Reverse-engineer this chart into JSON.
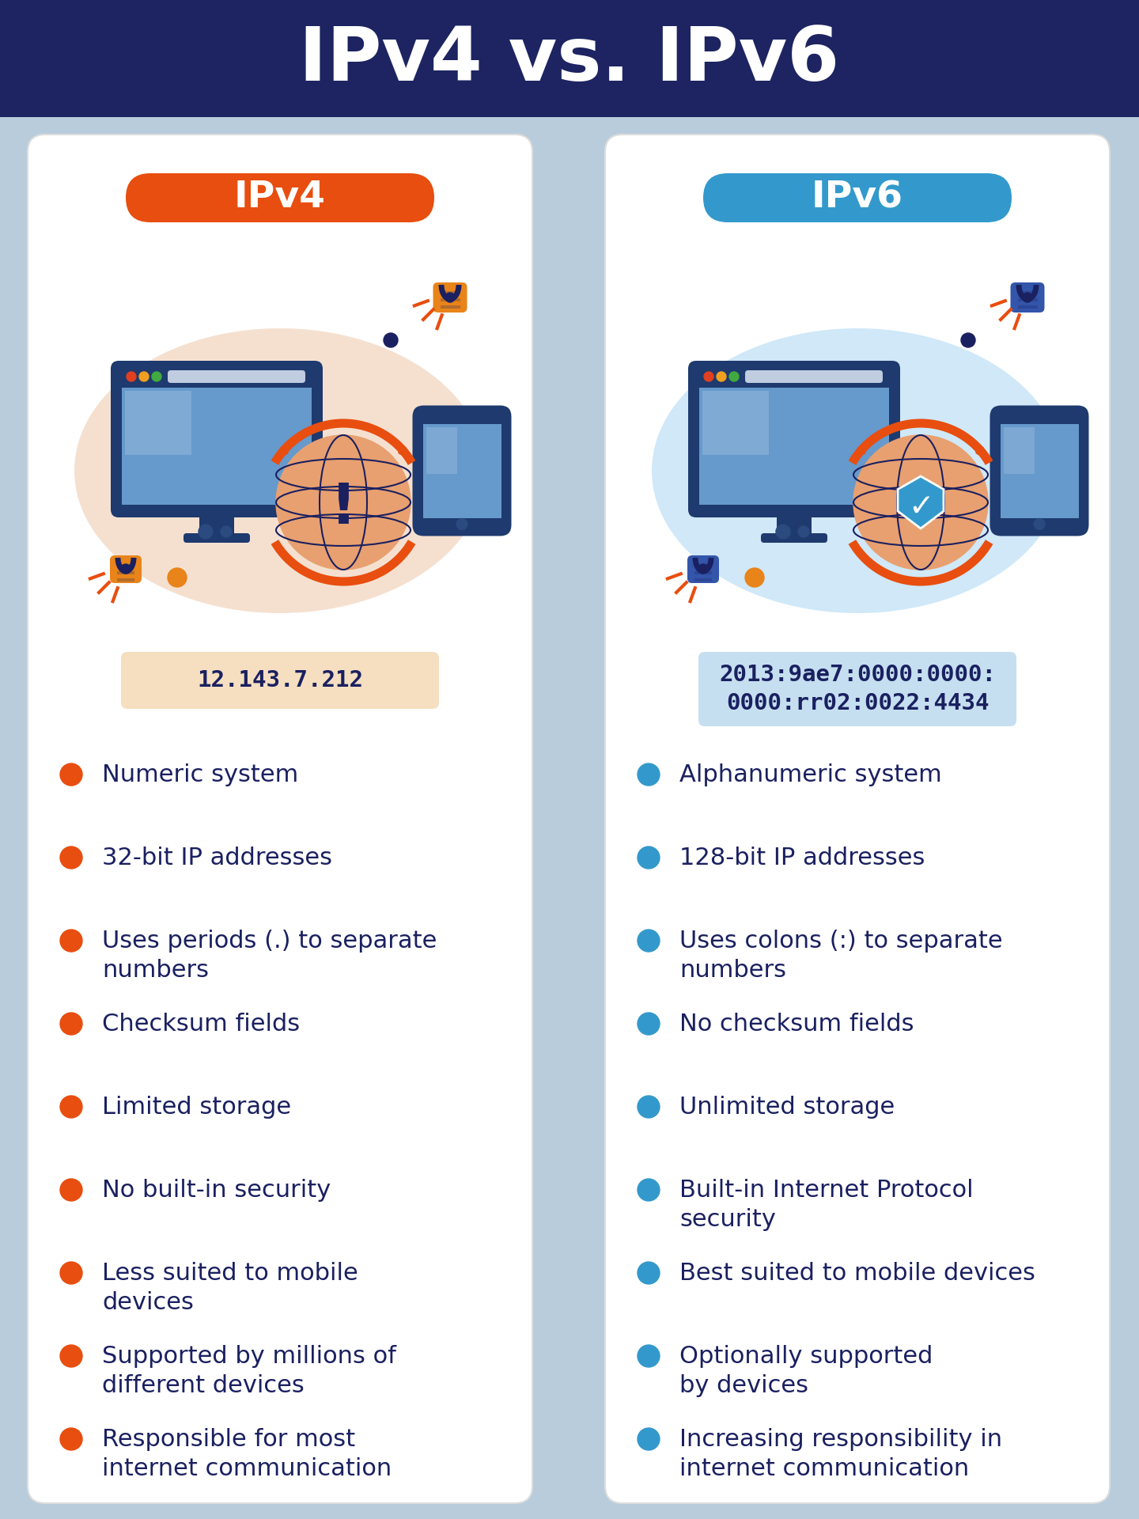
{
  "title": "IPv4 vs. IPv6",
  "title_color": "#ffffff",
  "header_bg_color": "#1d2461",
  "body_bg_color": "#b8ccdc",
  "card_bg_color": "#ffffff",
  "ipv4_label": "IPv4",
  "ipv6_label": "IPv6",
  "ipv4_label_color": "#ffffff",
  "ipv6_label_color": "#ffffff",
  "ipv4_badge_color": "#e84e0f",
  "ipv6_badge_color": "#3399cc",
  "ipv4_address": "12.143.7.212",
  "ipv6_address": "2013:9ae7:0000:0000:\n0000:rr02:0022:4434",
  "ipv4_addr_bg": "#f5dfc0",
  "ipv6_addr_bg": "#c5dff0",
  "text_color": "#1a2060",
  "ipv4_bullet_color": "#e84e0f",
  "ipv6_bullet_color": "#3399cc",
  "monitor_frame_color": "#1e3a6e",
  "monitor_screen_color": "#6699cc",
  "monitor_screen_light": "#99bbdd",
  "globe_body_color": "#e8a070",
  "globe_line_color": "#1a2060",
  "globe_ring_color": "#e84e0f",
  "phone_frame_color": "#1e3a6e",
  "phone_screen_color": "#6699cc",
  "lock_orange_color": "#e8841a",
  "lock_blue_color": "#3355aa",
  "blob_color_ipv4": "#f5e0d0",
  "blob_color_ipv6": "#d0e8f8",
  "ipv4_points": [
    "Numeric system",
    "32-bit IP addresses",
    "Uses periods (.) to separate\nnumbers",
    "Checksum fields",
    "Limited storage",
    "No built-in security",
    "Less suited to mobile\ndevices",
    "Supported by millions of\ndifferent devices",
    "Responsible for most\ninternet communication"
  ],
  "ipv6_points": [
    "Alphanumeric system",
    "128-bit IP addresses",
    "Uses colons (:) to separate\nnumbers",
    "No checksum fields",
    "Unlimited storage",
    "Built-in Internet Protocol\nsecurity",
    "Best suited to mobile devices",
    "Optionally supported\nby devices",
    "Increasing responsibility in\ninternet communication"
  ]
}
